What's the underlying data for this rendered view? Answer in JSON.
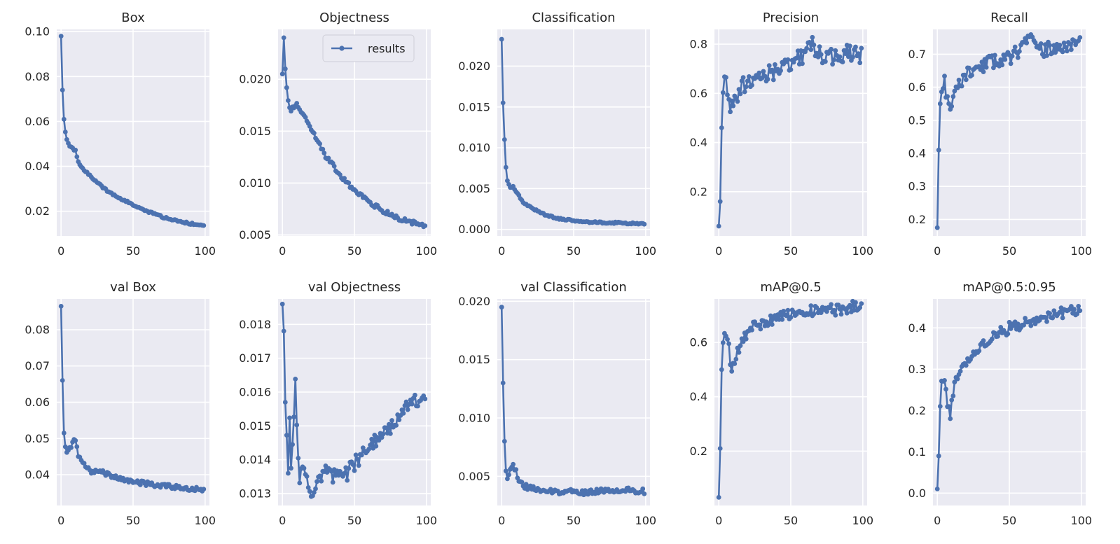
{
  "style": {
    "line_color": "#4c72b0",
    "plot_background": "#eaeaf2",
    "grid_color": "#ffffff",
    "text_color": "#262626"
  },
  "legend": {
    "label": "results",
    "panel": "Objectness",
    "placement": "upper right"
  },
  "chart_data": [
    {
      "type": "line",
      "title": "Box",
      "xlim": [
        -3,
        103
      ],
      "ylim": [
        0.009,
        0.101
      ],
      "xticks": [
        0,
        50,
        100
      ],
      "yticks": [
        0.02,
        0.04,
        0.06,
        0.08,
        0.1
      ],
      "ytick_labels": [
        "0.02",
        "0.04",
        "0.06",
        "0.08",
        "0.10"
      ],
      "anchors": [
        [
          0,
          0.098
        ],
        [
          1,
          0.074
        ],
        [
          2,
          0.061
        ],
        [
          3,
          0.055
        ],
        [
          4,
          0.052
        ],
        [
          6,
          0.049
        ],
        [
          8,
          0.048
        ],
        [
          10,
          0.047
        ],
        [
          12,
          0.042
        ],
        [
          15,
          0.039
        ],
        [
          20,
          0.036
        ],
        [
          25,
          0.033
        ],
        [
          30,
          0.03
        ],
        [
          40,
          0.026
        ],
        [
          50,
          0.023
        ],
        [
          60,
          0.02
        ],
        [
          70,
          0.0175
        ],
        [
          80,
          0.0158
        ],
        [
          90,
          0.0145
        ],
        [
          99,
          0.0135
        ]
      ],
      "noise": 0.0004
    },
    {
      "type": "line",
      "title": "Objectness",
      "legend": true,
      "xlim": [
        -3,
        103
      ],
      "ylim": [
        0.0049,
        0.0248
      ],
      "xticks": [
        0,
        50,
        100
      ],
      "yticks": [
        0.005,
        0.01,
        0.015,
        0.02
      ],
      "ytick_labels": [
        "0.005",
        "0.010",
        "0.015",
        "0.020"
      ],
      "anchors": [
        [
          0,
          0.0205
        ],
        [
          1,
          0.024
        ],
        [
          2,
          0.021
        ],
        [
          3,
          0.019
        ],
        [
          4,
          0.0178
        ],
        [
          6,
          0.017
        ],
        [
          8,
          0.0173
        ],
        [
          10,
          0.0175
        ],
        [
          12,
          0.0172
        ],
        [
          15,
          0.0165
        ],
        [
          20,
          0.0152
        ],
        [
          25,
          0.014
        ],
        [
          30,
          0.0126
        ],
        [
          35,
          0.0118
        ],
        [
          40,
          0.0107
        ],
        [
          50,
          0.0093
        ],
        [
          60,
          0.0082
        ],
        [
          70,
          0.0073
        ],
        [
          80,
          0.0066
        ],
        [
          90,
          0.0062
        ],
        [
          99,
          0.0059
        ]
      ],
      "noise": 0.0002
    },
    {
      "type": "line",
      "title": "Classification",
      "xlim": [
        -3,
        103
      ],
      "ylim": [
        -0.0008,
        0.0245
      ],
      "xticks": [
        0,
        50,
        100
      ],
      "yticks": [
        0.0,
        0.005,
        0.01,
        0.015,
        0.02
      ],
      "ytick_labels": [
        "0.000",
        "0.005",
        "0.010",
        "0.015",
        "0.020"
      ],
      "anchors": [
        [
          0,
          0.0233
        ],
        [
          1,
          0.0155
        ],
        [
          2,
          0.011
        ],
        [
          3,
          0.0077
        ],
        [
          4,
          0.006
        ],
        [
          6,
          0.0052
        ],
        [
          8,
          0.0052
        ],
        [
          10,
          0.0047
        ],
        [
          15,
          0.0033
        ],
        [
          20,
          0.0027
        ],
        [
          30,
          0.0018
        ],
        [
          40,
          0.0013
        ],
        [
          50,
          0.0011
        ],
        [
          60,
          0.0009
        ],
        [
          80,
          0.0008
        ],
        [
          99,
          0.0007
        ]
      ],
      "noise": 0.0001
    },
    {
      "type": "line",
      "title": "Precision",
      "xlim": [
        -3,
        103
      ],
      "ylim": [
        0.02,
        0.86
      ],
      "xticks": [
        0,
        50,
        100
      ],
      "yticks": [
        0.2,
        0.4,
        0.6,
        0.8
      ],
      "ytick_labels": [
        "0.2",
        "0.4",
        "0.6",
        "0.8"
      ],
      "anchors": [
        [
          0,
          0.06
        ],
        [
          1,
          0.16
        ],
        [
          2,
          0.46
        ],
        [
          3,
          0.63
        ],
        [
          4,
          0.65
        ],
        [
          6,
          0.62
        ],
        [
          8,
          0.53
        ],
        [
          10,
          0.57
        ],
        [
          15,
          0.62
        ],
        [
          20,
          0.65
        ],
        [
          25,
          0.66
        ],
        [
          30,
          0.68
        ],
        [
          40,
          0.69
        ],
        [
          50,
          0.73
        ],
        [
          60,
          0.75
        ],
        [
          63,
          0.81
        ],
        [
          70,
          0.76
        ],
        [
          80,
          0.75
        ],
        [
          90,
          0.77
        ],
        [
          99,
          0.75
        ]
      ],
      "noise": 0.035
    },
    {
      "type": "line",
      "title": "Recall",
      "xlim": [
        -3,
        103
      ],
      "ylim": [
        0.15,
        0.775
      ],
      "xticks": [
        0,
        50,
        100
      ],
      "yticks": [
        0.2,
        0.3,
        0.4,
        0.5,
        0.6,
        0.7
      ],
      "ytick_labels": [
        "0.2",
        "0.3",
        "0.4",
        "0.5",
        "0.6",
        "0.7"
      ],
      "anchors": [
        [
          0,
          0.175
        ],
        [
          1,
          0.41
        ],
        [
          2,
          0.55
        ],
        [
          3,
          0.6
        ],
        [
          5,
          0.62
        ],
        [
          8,
          0.53
        ],
        [
          10,
          0.55
        ],
        [
          15,
          0.6
        ],
        [
          20,
          0.64
        ],
        [
          30,
          0.66
        ],
        [
          40,
          0.68
        ],
        [
          50,
          0.69
        ],
        [
          60,
          0.72
        ],
        [
          61,
          0.76
        ],
        [
          70,
          0.71
        ],
        [
          80,
          0.72
        ],
        [
          90,
          0.72
        ],
        [
          99,
          0.74
        ]
      ],
      "noise": 0.022
    },
    {
      "type": "line",
      "title": "val Box",
      "xlim": [
        -3,
        103
      ],
      "ylim": [
        0.0315,
        0.0885
      ],
      "xticks": [
        0,
        50,
        100
      ],
      "yticks": [
        0.04,
        0.05,
        0.06,
        0.07,
        0.08
      ],
      "ytick_labels": [
        "0.04",
        "0.05",
        "0.06",
        "0.07",
        "0.08"
      ],
      "anchors": [
        [
          0,
          0.0865
        ],
        [
          1,
          0.066
        ],
        [
          2,
          0.0515
        ],
        [
          3,
          0.048
        ],
        [
          4,
          0.046
        ],
        [
          6,
          0.047
        ],
        [
          8,
          0.049
        ],
        [
          10,
          0.0495
        ],
        [
          12,
          0.045
        ],
        [
          15,
          0.043
        ],
        [
          20,
          0.041
        ],
        [
          30,
          0.0405
        ],
        [
          40,
          0.039
        ],
        [
          50,
          0.038
        ],
        [
          60,
          0.0375
        ],
        [
          70,
          0.037
        ],
        [
          80,
          0.0365
        ],
        [
          90,
          0.036
        ],
        [
          99,
          0.036
        ]
      ],
      "noise": 0.0006
    },
    {
      "type": "line",
      "title": "val Objectness",
      "xlim": [
        -3,
        103
      ],
      "ylim": [
        0.01265,
        0.01875
      ],
      "xticks": [
        0,
        50,
        100
      ],
      "yticks": [
        0.013,
        0.014,
        0.015,
        0.016,
        0.017,
        0.018
      ],
      "ytick_labels": [
        "0.013",
        "0.014",
        "0.015",
        "0.016",
        "0.017",
        "0.018"
      ],
      "anchors": [
        [
          0,
          0.0186
        ],
        [
          1,
          0.0178
        ],
        [
          2,
          0.0157
        ],
        [
          3,
          0.0148
        ],
        [
          4,
          0.0138
        ],
        [
          5,
          0.0152
        ],
        [
          6,
          0.0136
        ],
        [
          9,
          0.0164
        ],
        [
          10,
          0.015
        ],
        [
          12,
          0.0135
        ],
        [
          15,
          0.0137
        ],
        [
          20,
          0.013
        ],
        [
          25,
          0.0134
        ],
        [
          30,
          0.0138
        ],
        [
          35,
          0.0135
        ],
        [
          40,
          0.0136
        ],
        [
          45,
          0.0136
        ],
        [
          50,
          0.0139
        ],
        [
          55,
          0.0141
        ],
        [
          60,
          0.0145
        ],
        [
          65,
          0.0146
        ],
        [
          70,
          0.0147
        ],
        [
          80,
          0.0152
        ],
        [
          90,
          0.0157
        ],
        [
          99,
          0.0159
        ]
      ],
      "noise": 0.00022
    },
    {
      "type": "line",
      "title": "val Classification",
      "xlim": [
        -3,
        103
      ],
      "ylim": [
        0.0025,
        0.0202
      ],
      "xticks": [
        0,
        50,
        100
      ],
      "yticks": [
        0.005,
        0.01,
        0.015,
        0.02
      ],
      "ytick_labels": [
        "0.005",
        "0.010",
        "0.015",
        "0.020"
      ],
      "anchors": [
        [
          0,
          0.0195
        ],
        [
          1,
          0.013
        ],
        [
          2,
          0.008
        ],
        [
          3,
          0.0055
        ],
        [
          4,
          0.0048
        ],
        [
          6,
          0.0055
        ],
        [
          8,
          0.006
        ],
        [
          10,
          0.0055
        ],
        [
          12,
          0.0045
        ],
        [
          15,
          0.0042
        ],
        [
          20,
          0.004
        ],
        [
          30,
          0.0037
        ],
        [
          40,
          0.0037
        ],
        [
          50,
          0.0037
        ],
        [
          60,
          0.0036
        ],
        [
          70,
          0.0038
        ],
        [
          80,
          0.0038
        ],
        [
          90,
          0.0038
        ],
        [
          99,
          0.0037
        ]
      ],
      "noise": 0.00022
    },
    {
      "type": "line",
      "title": "mAP@0.5",
      "xlim": [
        -3,
        103
      ],
      "ylim": [
        0.0,
        0.76
      ],
      "xticks": [
        0,
        50,
        100
      ],
      "yticks": [
        0.2,
        0.4,
        0.6
      ],
      "ytick_labels": [
        "0.2",
        "0.4",
        "0.6"
      ],
      "anchors": [
        [
          0,
          0.03
        ],
        [
          1,
          0.21
        ],
        [
          2,
          0.5
        ],
        [
          3,
          0.6
        ],
        [
          5,
          0.63
        ],
        [
          7,
          0.58
        ],
        [
          9,
          0.49
        ],
        [
          12,
          0.55
        ],
        [
          15,
          0.6
        ],
        [
          20,
          0.64
        ],
        [
          25,
          0.66
        ],
        [
          30,
          0.67
        ],
        [
          40,
          0.69
        ],
        [
          50,
          0.7
        ],
        [
          60,
          0.71
        ],
        [
          70,
          0.72
        ],
        [
          80,
          0.72
        ],
        [
          90,
          0.73
        ],
        [
          99,
          0.73
        ]
      ],
      "noise": 0.022
    },
    {
      "type": "line",
      "title": "mAP@0.5:0.95",
      "xlim": [
        -3,
        103
      ],
      "ylim": [
        -0.03,
        0.47
      ],
      "xticks": [
        0,
        50,
        100
      ],
      "yticks": [
        0.0,
        0.1,
        0.2,
        0.3,
        0.4
      ],
      "ytick_labels": [
        "0.0",
        "0.1",
        "0.2",
        "0.3",
        "0.4"
      ],
      "anchors": [
        [
          0,
          0.01
        ],
        [
          1,
          0.09
        ],
        [
          2,
          0.21
        ],
        [
          3,
          0.27
        ],
        [
          5,
          0.28
        ],
        [
          7,
          0.22
        ],
        [
          9,
          0.19
        ],
        [
          12,
          0.26
        ],
        [
          15,
          0.3
        ],
        [
          20,
          0.32
        ],
        [
          25,
          0.33
        ],
        [
          30,
          0.35
        ],
        [
          40,
          0.38
        ],
        [
          50,
          0.4
        ],
        [
          60,
          0.41
        ],
        [
          70,
          0.42
        ],
        [
          80,
          0.43
        ],
        [
          90,
          0.44
        ],
        [
          99,
          0.44
        ]
      ],
      "noise": 0.014
    }
  ]
}
